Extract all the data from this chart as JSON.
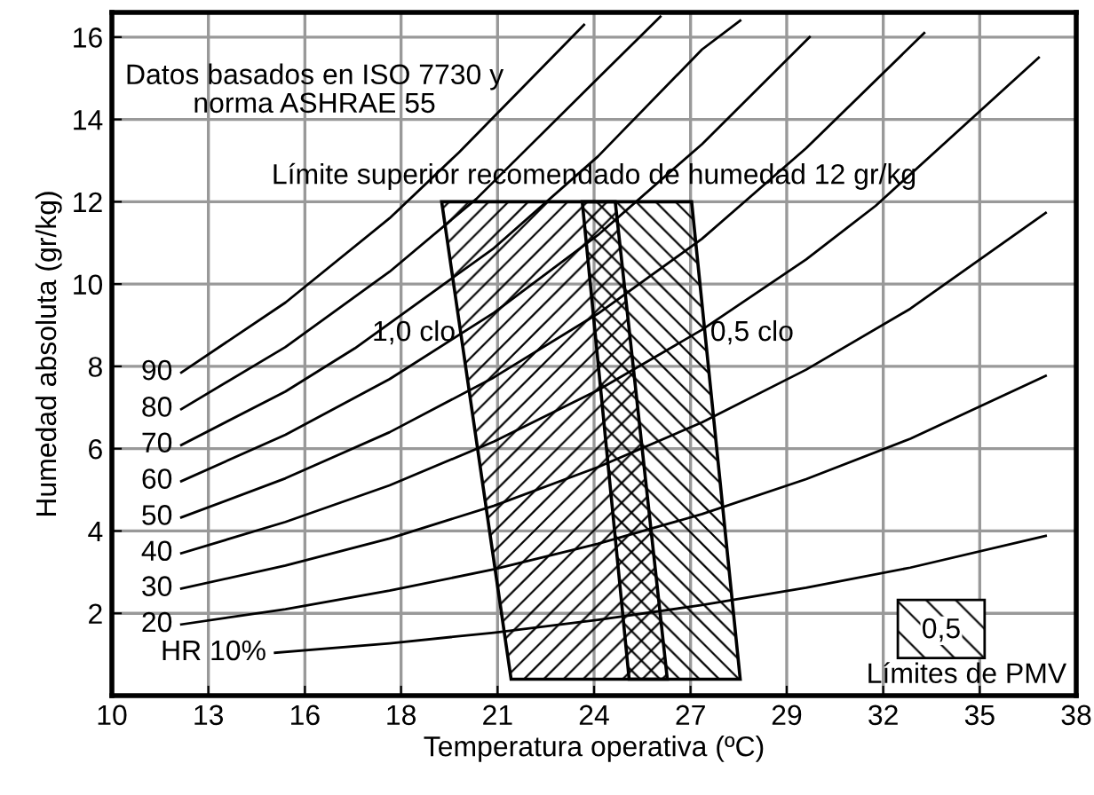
{
  "chart_data": {
    "type": "line",
    "xlabel": "Temperatura operativa (ºC)",
    "ylabel": "Humedad absoluta (gr/kg)",
    "xlim": [
      10,
      37.78
    ],
    "ylim": [
      0,
      16.6
    ],
    "xticks": [
      10,
      {
        "value": 12.78,
        "label": "13"
      },
      {
        "value": 15.56,
        "label": "16"
      },
      {
        "value": 18.33,
        "label": "18"
      },
      {
        "value": 21.11,
        "label": "21"
      },
      {
        "value": 23.89,
        "label": "24"
      },
      {
        "value": 26.67,
        "label": "27"
      },
      {
        "value": 29.44,
        "label": "29"
      },
      {
        "value": 32.22,
        "label": "32"
      },
      35,
      {
        "value": 37.78,
        "label": "38"
      }
    ],
    "yticks": [
      2,
      4,
      6,
      8,
      10,
      12,
      14,
      16
    ],
    "grid": true,
    "series": [
      {
        "name": "HR 10%",
        "color": "#000000",
        "x": [
          14.7,
          18,
          21,
          24,
          27,
          30,
          33,
          36.9
        ],
        "values": [
          1.04,
          1.27,
          1.53,
          1.84,
          2.2,
          2.62,
          3.11,
          3.88
        ]
      },
      {
        "name": "20",
        "color": "#000000",
        "x": [
          12,
          15,
          18,
          21,
          24,
          27,
          30,
          33,
          36.9
        ],
        "values": [
          1.73,
          2.1,
          2.55,
          3.07,
          3.69,
          4.41,
          5.26,
          6.24,
          7.77
        ]
      },
      {
        "name": "30",
        "color": "#000000",
        "x": [
          12,
          15,
          18,
          21,
          24,
          27,
          30,
          33,
          36.9
        ],
        "values": [
          2.6,
          3.16,
          3.82,
          4.61,
          5.55,
          6.64,
          7.92,
          9.4,
          11.73
        ]
      },
      {
        "name": "40",
        "color": "#000000",
        "x": [
          12,
          15,
          18,
          21,
          24,
          27,
          30,
          32,
          36.7
        ],
        "values": [
          3.46,
          4.22,
          5.11,
          6.17,
          7.42,
          8.89,
          10.6,
          11.9,
          15.5
        ]
      },
      {
        "name": "50",
        "color": "#000000",
        "x": [
          12,
          15,
          18,
          21,
          24,
          27,
          30,
          33.4
        ],
        "values": [
          4.33,
          5.28,
          6.4,
          7.73,
          9.28,
          11.1,
          13.3,
          16.1
        ]
      },
      {
        "name": "60",
        "color": "#000000",
        "x": [
          12,
          15,
          18,
          21,
          24,
          27,
          30.1
        ],
        "values": [
          5.21,
          6.34,
          7.69,
          9.3,
          11.19,
          13.4,
          16.0
        ]
      },
      {
        "name": "70",
        "color": "#000000",
        "x": [
          12,
          15,
          17,
          21,
          24,
          27,
          28.1
        ],
        "values": [
          6.09,
          7.39,
          8.44,
          10.87,
          13.1,
          15.7,
          16.4
        ]
      },
      {
        "name": "80",
        "color": "#000000",
        "x": [
          12,
          15,
          18,
          20.5,
          24,
          25.8
        ],
        "values": [
          6.96,
          8.47,
          10.3,
          12.07,
          15.0,
          16.5
        ]
      },
      {
        "name": "90",
        "color": "#000000",
        "x": [
          12,
          15,
          18,
          20,
          23.6
        ],
        "values": [
          7.85,
          9.55,
          11.6,
          13.2,
          16.3
        ]
      },
      {
        "name": "1,0 clo",
        "type": "area",
        "color": "#000000",
        "x": [
          19.5,
          24.5,
          26.0,
          21.5,
          19.5
        ],
        "values": [
          12,
          12,
          0.4,
          0.4,
          12
        ]
      },
      {
        "name": "0,5 clo",
        "type": "area",
        "color": "#000000",
        "x": [
          23.55,
          26.7,
          28.1,
          24.9,
          23.55
        ],
        "values": [
          12,
          12,
          0.4,
          0.4,
          12
        ]
      }
    ],
    "annotations": [
      "Datos basados en ISO 7730 y\nnorma ASHRAE 55",
      "Límite superior recomendado de humedad 12 gr/kg",
      "0,5",
      "Límites de PMV"
    ]
  }
}
